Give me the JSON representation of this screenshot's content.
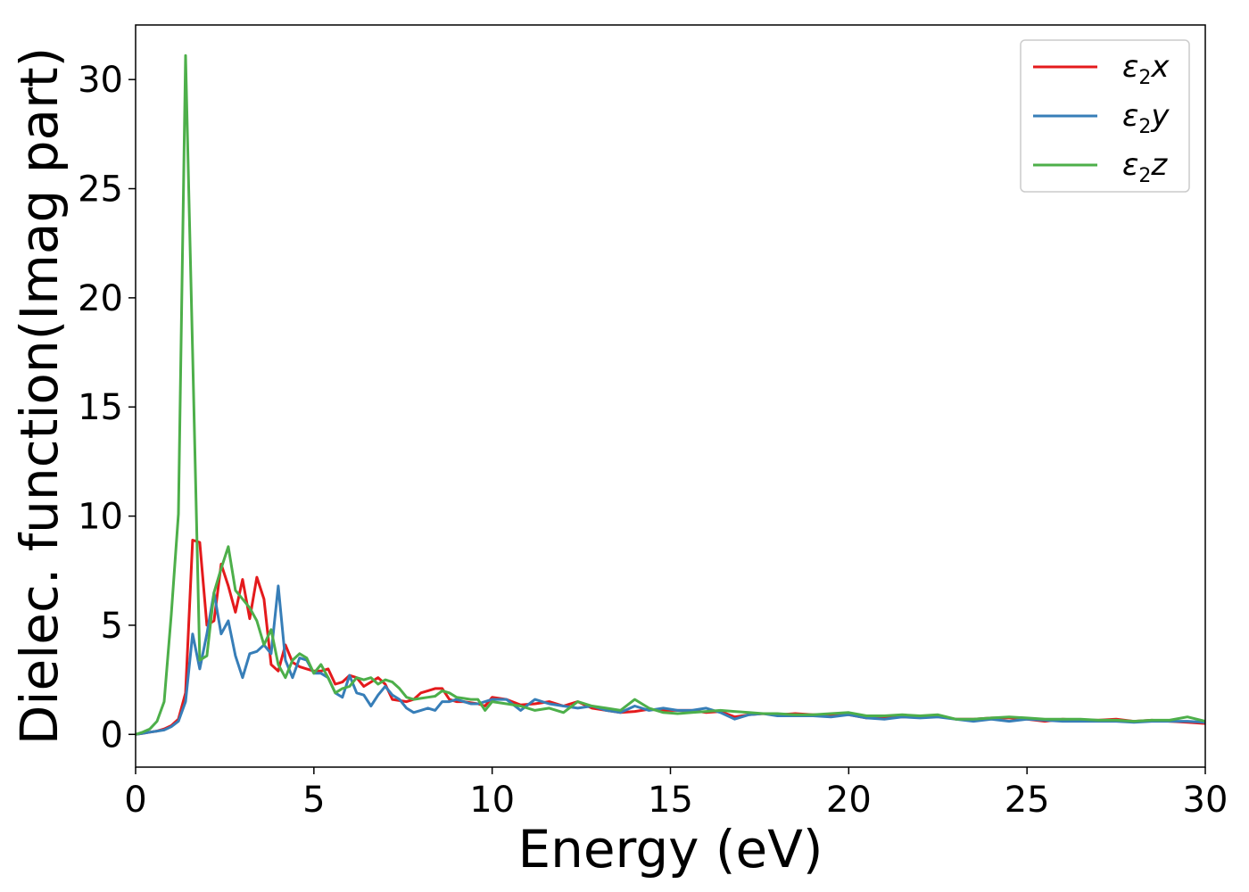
{
  "chart_data": {
    "type": "line",
    "xlabel": "Energy (eV)",
    "ylabel": "Dielec. function(Imag part)",
    "xlim": [
      0,
      30
    ],
    "ylim": [
      -1.5,
      32.5
    ],
    "xticks": [
      0,
      5,
      10,
      15,
      20,
      25,
      30
    ],
    "yticks": [
      0,
      5,
      10,
      15,
      20,
      25,
      30
    ],
    "grid": false,
    "legend_position": "top-right",
    "x": [
      0.0,
      0.2,
      0.4,
      0.6,
      0.8,
      1.0,
      1.2,
      1.4,
      1.6,
      1.8,
      2.0,
      2.2,
      2.4,
      2.6,
      2.8,
      3.0,
      3.2,
      3.4,
      3.6,
      3.8,
      4.0,
      4.2,
      4.4,
      4.6,
      4.8,
      5.0,
      5.2,
      5.4,
      5.6,
      5.8,
      6.0,
      6.2,
      6.4,
      6.6,
      6.8,
      7.0,
      7.2,
      7.4,
      7.6,
      7.8,
      8.0,
      8.2,
      8.4,
      8.6,
      8.8,
      9.0,
      9.2,
      9.4,
      9.6,
      9.8,
      10.0,
      10.4,
      10.8,
      11.2,
      11.6,
      12.0,
      12.4,
      12.8,
      13.2,
      13.6,
      14.0,
      14.4,
      14.8,
      15.2,
      15.6,
      16.0,
      16.4,
      16.8,
      17.2,
      17.6,
      18.0,
      18.5,
      19.0,
      19.5,
      20.0,
      20.5,
      21.0,
      21.5,
      22.0,
      22.5,
      23.0,
      23.5,
      24.0,
      24.5,
      25.0,
      25.5,
      26.0,
      26.5,
      27.0,
      27.5,
      28.0,
      28.5,
      29.0,
      29.5,
      30.0
    ],
    "series": [
      {
        "name": "ε2x",
        "color": "#e41a1c",
        "values": [
          0.0,
          0.05,
          0.1,
          0.15,
          0.25,
          0.4,
          0.7,
          1.9,
          8.9,
          8.8,
          5.0,
          5.2,
          7.8,
          6.8,
          5.6,
          7.1,
          5.3,
          7.2,
          6.2,
          3.2,
          2.9,
          4.1,
          3.3,
          3.1,
          3.0,
          2.9,
          2.9,
          3.0,
          2.3,
          2.4,
          2.7,
          2.6,
          2.2,
          2.4,
          2.6,
          2.3,
          1.6,
          1.55,
          1.5,
          1.6,
          1.9,
          2.0,
          2.1,
          2.1,
          1.6,
          1.5,
          1.5,
          1.45,
          1.4,
          1.3,
          1.7,
          1.6,
          1.35,
          1.4,
          1.5,
          1.3,
          1.5,
          1.2,
          1.1,
          1.0,
          1.05,
          1.15,
          1.1,
          1.1,
          1.1,
          1.0,
          1.05,
          0.8,
          0.9,
          0.95,
          0.9,
          0.95,
          0.9,
          0.9,
          0.9,
          0.75,
          0.75,
          0.8,
          0.8,
          0.85,
          0.7,
          0.7,
          0.75,
          0.75,
          0.7,
          0.6,
          0.7,
          0.65,
          0.65,
          0.7,
          0.6,
          0.65,
          0.6,
          0.55,
          0.5
        ]
      },
      {
        "name": "ε2y",
        "color": "#377eb8",
        "values": [
          0.0,
          0.05,
          0.1,
          0.15,
          0.2,
          0.35,
          0.6,
          1.5,
          4.6,
          3.0,
          4.6,
          6.5,
          4.6,
          5.2,
          3.6,
          2.6,
          3.7,
          3.8,
          4.1,
          3.7,
          6.8,
          3.4,
          2.6,
          3.5,
          3.4,
          2.8,
          2.8,
          2.6,
          1.9,
          1.7,
          2.7,
          1.9,
          1.8,
          1.3,
          1.8,
          2.2,
          1.8,
          1.6,
          1.2,
          1.0,
          1.1,
          1.2,
          1.1,
          1.5,
          1.5,
          1.6,
          1.5,
          1.4,
          1.4,
          1.5,
          1.6,
          1.6,
          1.1,
          1.6,
          1.4,
          1.3,
          1.2,
          1.3,
          1.1,
          1.0,
          1.3,
          1.1,
          1.2,
          1.1,
          1.1,
          1.2,
          1.0,
          0.7,
          0.9,
          0.95,
          0.85,
          0.85,
          0.85,
          0.8,
          0.9,
          0.75,
          0.7,
          0.8,
          0.75,
          0.8,
          0.7,
          0.6,
          0.7,
          0.6,
          0.7,
          0.65,
          0.6,
          0.6,
          0.6,
          0.6,
          0.55,
          0.6,
          0.6,
          0.6,
          0.55
        ]
      },
      {
        "name": "ε2z",
        "color": "#4daf4a",
        "values": [
          0.0,
          0.1,
          0.25,
          0.6,
          1.5,
          5.5,
          10.1,
          31.1,
          17.5,
          3.4,
          3.6,
          6.5,
          7.6,
          8.6,
          6.6,
          6.2,
          5.8,
          5.2,
          4.1,
          4.8,
          3.2,
          2.6,
          3.4,
          3.7,
          3.5,
          2.8,
          3.2,
          2.6,
          1.9,
          2.1,
          2.2,
          2.6,
          2.5,
          2.6,
          2.3,
          2.5,
          2.4,
          2.1,
          1.7,
          1.6,
          1.65,
          1.7,
          1.75,
          2.0,
          1.9,
          1.7,
          1.65,
          1.6,
          1.6,
          1.1,
          1.5,
          1.4,
          1.3,
          1.1,
          1.2,
          1.0,
          1.5,
          1.3,
          1.2,
          1.1,
          1.6,
          1.2,
          1.0,
          0.95,
          1.0,
          1.05,
          1.1,
          1.05,
          1.0,
          0.95,
          0.95,
          0.9,
          0.9,
          0.95,
          1.0,
          0.85,
          0.85,
          0.9,
          0.85,
          0.9,
          0.7,
          0.7,
          0.75,
          0.8,
          0.75,
          0.7,
          0.7,
          0.7,
          0.65,
          0.65,
          0.6,
          0.65,
          0.65,
          0.8,
          0.6
        ]
      }
    ]
  }
}
